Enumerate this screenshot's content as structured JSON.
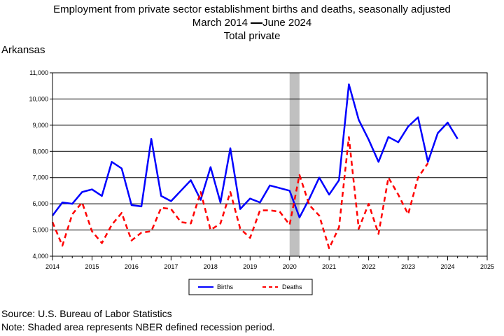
{
  "title_line1": "Employment from private sector establishment births and deaths, seasonally adjusted",
  "title_line2_start": "March 2014",
  "title_line2_end": "June 2024",
  "title_line3": "Total private",
  "region": "Arkansas",
  "source": "Source: U.S. Bureau of Labor Statistics",
  "note": "Note: Shaded area represents NBER defined recession period.",
  "chart_data": {
    "type": "line",
    "title": "Employment from private sector establishment births and deaths, seasonally adjusted",
    "xlim": [
      2014,
      2025
    ],
    "ylim": [
      4000,
      11000
    ],
    "x_ticks": [
      2014,
      2015,
      2016,
      2017,
      2018,
      2019,
      2020,
      2021,
      2022,
      2023,
      2024,
      2025
    ],
    "x_tick_labels": [
      "2014",
      "2015",
      "2016",
      "2017",
      "2018",
      "2019",
      "2020",
      "2021",
      "2022",
      "2023",
      "2024",
      "2025"
    ],
    "y_ticks": [
      4000,
      5000,
      6000,
      7000,
      8000,
      9000,
      10000,
      11000
    ],
    "y_tick_labels": [
      "4,000",
      "5,000",
      "6,000",
      "7,000",
      "8,000",
      "9,000",
      "10,000",
      "11,000"
    ],
    "grid": "horizontal",
    "legend_position": "bottom-center",
    "recession": {
      "start": 2020.0,
      "end": 2020.25,
      "color": "#c0c0c0"
    },
    "x": [
      2014.0,
      2014.25,
      2014.5,
      2014.75,
      2015.0,
      2015.25,
      2015.5,
      2015.75,
      2016.0,
      2016.25,
      2016.5,
      2016.75,
      2017.0,
      2017.25,
      2017.5,
      2017.75,
      2018.0,
      2018.25,
      2018.5,
      2018.75,
      2019.0,
      2019.25,
      2019.5,
      2019.75,
      2020.0,
      2020.25,
      2020.5,
      2020.75,
      2021.0,
      2021.25,
      2021.5,
      2021.75,
      2022.0,
      2022.25,
      2022.5,
      2022.75,
      2023.0,
      2023.25,
      2023.5,
      2023.75,
      2024.0,
      2024.25
    ],
    "series": [
      {
        "name": "Births",
        "color": "#0000ff",
        "style": "solid",
        "values": [
          5550,
          6050,
          6000,
          6450,
          6550,
          6300,
          7600,
          7350,
          5950,
          5900,
          8480,
          6300,
          6100,
          6500,
          6900,
          6150,
          7400,
          6050,
          8120,
          5800,
          6200,
          6050,
          6700,
          6600,
          6500,
          5480,
          6200,
          7000,
          6350,
          6900,
          10560,
          9200,
          8450,
          7600,
          8550,
          8350,
          8950,
          9300,
          7600,
          8700,
          9100,
          8480
        ]
      },
      {
        "name": "Deaths",
        "color": "#ff0000",
        "style": "dashed",
        "values": [
          5300,
          4400,
          5600,
          6050,
          4950,
          4500,
          5200,
          5650,
          4600,
          4900,
          4950,
          5850,
          5800,
          5300,
          5250,
          6450,
          5000,
          5250,
          6450,
          5050,
          4700,
          5750,
          5750,
          5700,
          5200,
          7100,
          5950,
          5550,
          4300,
          5100,
          8550,
          5050,
          6000,
          4850,
          7000,
          6350,
          5600,
          7000,
          7550,
          null,
          null,
          null
        ]
      }
    ]
  }
}
